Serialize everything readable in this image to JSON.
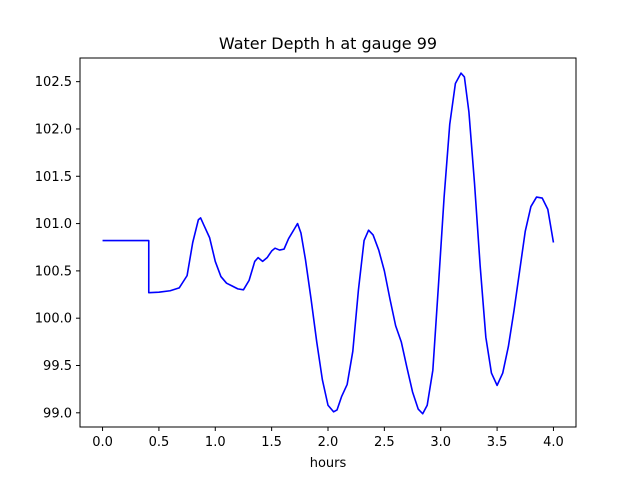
{
  "chart_data": {
    "type": "line",
    "title": "Water Depth h at gauge 99",
    "xlabel": "hours",
    "ylabel": "",
    "xlim": [
      -0.2,
      4.2
    ],
    "ylim": [
      98.85,
      102.75
    ],
    "xticks": [
      0.0,
      0.5,
      1.0,
      1.5,
      2.0,
      2.5,
      3.0,
      3.5,
      4.0
    ],
    "xtick_labels": [
      "0.0",
      "0.5",
      "1.0",
      "1.5",
      "2.0",
      "2.5",
      "3.0",
      "3.5",
      "4.0"
    ],
    "yticks": [
      99.0,
      99.5,
      100.0,
      100.5,
      101.0,
      101.5,
      102.0,
      102.5
    ],
    "ytick_labels": [
      "99.0",
      "99.5",
      "100.0",
      "100.5",
      "101.0",
      "101.5",
      "102.0",
      "102.5"
    ],
    "grid": false,
    "series": [
      {
        "color": "#0000ff",
        "points": [
          [
            0.0,
            100.82
          ],
          [
            0.2,
            100.82
          ],
          [
            0.41,
            100.82
          ],
          [
            0.41,
            100.27
          ],
          [
            0.5,
            100.275
          ],
          [
            0.6,
            100.29
          ],
          [
            0.68,
            100.32
          ],
          [
            0.75,
            100.45
          ],
          [
            0.8,
            100.8
          ],
          [
            0.85,
            101.04
          ],
          [
            0.87,
            101.06
          ],
          [
            0.9,
            100.98
          ],
          [
            0.95,
            100.85
          ],
          [
            1.0,
            100.6
          ],
          [
            1.05,
            100.44
          ],
          [
            1.1,
            100.37
          ],
          [
            1.15,
            100.34
          ],
          [
            1.2,
            100.31
          ],
          [
            1.25,
            100.3
          ],
          [
            1.3,
            100.4
          ],
          [
            1.35,
            100.6
          ],
          [
            1.38,
            100.64
          ],
          [
            1.42,
            100.6
          ],
          [
            1.46,
            100.64
          ],
          [
            1.5,
            100.71
          ],
          [
            1.53,
            100.74
          ],
          [
            1.57,
            100.72
          ],
          [
            1.61,
            100.73
          ],
          [
            1.65,
            100.84
          ],
          [
            1.7,
            100.94
          ],
          [
            1.73,
            101.0
          ],
          [
            1.76,
            100.9
          ],
          [
            1.8,
            100.62
          ],
          [
            1.85,
            100.2
          ],
          [
            1.9,
            99.75
          ],
          [
            1.95,
            99.35
          ],
          [
            2.0,
            99.08
          ],
          [
            2.05,
            99.01
          ],
          [
            2.08,
            99.03
          ],
          [
            2.12,
            99.17
          ],
          [
            2.17,
            99.3
          ],
          [
            2.22,
            99.65
          ],
          [
            2.27,
            100.3
          ],
          [
            2.32,
            100.82
          ],
          [
            2.36,
            100.93
          ],
          [
            2.4,
            100.88
          ],
          [
            2.45,
            100.72
          ],
          [
            2.5,
            100.5
          ],
          [
            2.55,
            100.2
          ],
          [
            2.6,
            99.92
          ],
          [
            2.65,
            99.75
          ],
          [
            2.7,
            99.48
          ],
          [
            2.75,
            99.22
          ],
          [
            2.8,
            99.04
          ],
          [
            2.84,
            98.99
          ],
          [
            2.88,
            99.08
          ],
          [
            2.93,
            99.45
          ],
          [
            2.98,
            100.35
          ],
          [
            3.03,
            101.28
          ],
          [
            3.08,
            102.05
          ],
          [
            3.13,
            102.48
          ],
          [
            3.18,
            102.59
          ],
          [
            3.21,
            102.55
          ],
          [
            3.25,
            102.18
          ],
          [
            3.3,
            101.42
          ],
          [
            3.35,
            100.55
          ],
          [
            3.4,
            99.8
          ],
          [
            3.45,
            99.42
          ],
          [
            3.5,
            99.29
          ],
          [
            3.55,
            99.42
          ],
          [
            3.6,
            99.7
          ],
          [
            3.65,
            100.08
          ],
          [
            3.7,
            100.5
          ],
          [
            3.75,
            100.92
          ],
          [
            3.8,
            101.18
          ],
          [
            3.85,
            101.28
          ],
          [
            3.9,
            101.27
          ],
          [
            3.95,
            101.15
          ],
          [
            4.0,
            100.8
          ]
        ]
      }
    ]
  }
}
